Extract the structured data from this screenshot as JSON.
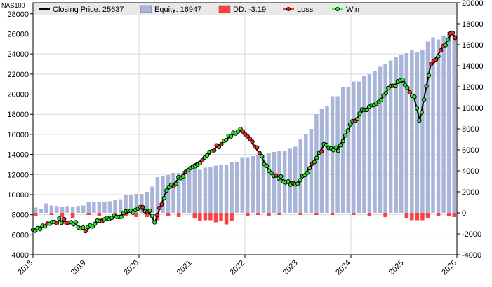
{
  "chart_data": {
    "type": "bar+line",
    "symbol": "NAS100",
    "x_ticks": [
      "2018",
      "2019",
      "2020",
      "2021",
      "2022",
      "2023",
      "2024",
      "2025",
      "2026"
    ],
    "y_left": {
      "ticks": [
        4000,
        6000,
        8000,
        10000,
        12000,
        14000,
        16000,
        18000,
        20000,
        22000,
        24000,
        26000,
        28000
      ],
      "range": [
        4000,
        29100
      ]
    },
    "y_right": {
      "ticks": [
        -4000,
        -2000,
        0,
        2000,
        4000,
        6000,
        8000,
        10000,
        12000,
        14000,
        16000,
        18000,
        20000
      ],
      "range": [
        -4000,
        20000
      ]
    },
    "legend": [
      {
        "key": "closing",
        "label": "Closing Price: 25637",
        "color": "#000000"
      },
      {
        "key": "equity",
        "label": "Equity: 16947",
        "color": "#a8b4d8"
      },
      {
        "key": "dd",
        "label": "DD: -3.19",
        "color": "#ff4040"
      },
      {
        "key": "loss",
        "label": "Loss",
        "color": "#ff0000"
      },
      {
        "key": "win",
        "label": "Win",
        "color": "#00ff00"
      }
    ],
    "price": {
      "x": [
        2018.0,
        2018.25,
        2018.5,
        2018.75,
        2019.0,
        2019.25,
        2019.5,
        2019.75,
        2020.0,
        2020.2,
        2020.3,
        2020.5,
        2020.75,
        2021.0,
        2021.25,
        2021.5,
        2021.75,
        2021.95,
        2022.25,
        2022.5,
        2022.75,
        2023.0,
        2023.25,
        2023.5,
        2023.75,
        2024.0,
        2024.25,
        2024.5,
        2024.75,
        2025.0,
        2025.2,
        2025.3,
        2025.5,
        2025.75,
        2025.9,
        2026.0
      ],
      "values": [
        6500,
        7000,
        7400,
        7200,
        6400,
        7500,
        7700,
        8100,
        8700,
        8200,
        7200,
        10200,
        11600,
        12900,
        13600,
        14900,
        15900,
        16400,
        14300,
        12000,
        11400,
        11000,
        12900,
        15000,
        14500,
        16900,
        18500,
        19000,
        20800,
        21300,
        19500,
        17400,
        22800,
        24800,
        26000,
        25637
      ]
    },
    "equity": {
      "x": [
        2018.05,
        2018.15,
        2018.25,
        2018.35,
        2018.45,
        2018.55,
        2018.65,
        2018.75,
        2018.85,
        2018.95,
        2019.05,
        2019.15,
        2019.25,
        2019.35,
        2019.45,
        2019.55,
        2019.65,
        2019.75,
        2019.85,
        2019.95,
        2020.05,
        2020.15,
        2020.25,
        2020.35,
        2020.45,
        2020.55,
        2020.65,
        2020.75,
        2020.85,
        2020.95,
        2021.05,
        2021.15,
        2021.25,
        2021.35,
        2021.45,
        2021.55,
        2021.65,
        2021.75,
        2021.85,
        2021.95,
        2022.05,
        2022.15,
        2022.25,
        2022.35,
        2022.45,
        2022.55,
        2022.65,
        2022.75,
        2022.85,
        2022.95,
        2023.05,
        2023.15,
        2023.25,
        2023.35,
        2023.45,
        2023.55,
        2023.65,
        2023.75,
        2023.85,
        2023.95,
        2024.05,
        2024.15,
        2024.25,
        2024.35,
        2024.45,
        2024.55,
        2024.65,
        2024.75,
        2024.85,
        2024.95,
        2025.05,
        2025.15,
        2025.25,
        2025.35,
        2025.45,
        2025.55,
        2025.65,
        2025.75,
        2025.85,
        2025.95
      ],
      "values": [
        500,
        400,
        900,
        700,
        650,
        600,
        650,
        600,
        650,
        700,
        1000,
        1000,
        1050,
        1050,
        1100,
        1200,
        1300,
        1700,
        1700,
        1800,
        1800,
        2000,
        2500,
        3400,
        3500,
        3600,
        3800,
        3800,
        4000,
        4200,
        4200,
        4100,
        4300,
        4400,
        4500,
        4600,
        4600,
        4800,
        4800,
        5300,
        5300,
        5400,
        5500,
        5500,
        5700,
        5800,
        5900,
        5900,
        6100,
        6300,
        7000,
        7500,
        8000,
        9400,
        9900,
        10200,
        11100,
        11100,
        12000,
        12000,
        12500,
        12500,
        13000,
        13200,
        13500,
        13900,
        14200,
        14500,
        14800,
        15000,
        15200,
        15500,
        15300,
        15500,
        16300,
        16700,
        16500,
        16800,
        17200,
        16947
      ]
    },
    "drawdown": {
      "x": [
        2018.05,
        2018.35,
        2018.55,
        2018.75,
        2019.05,
        2019.25,
        2019.55,
        2019.75,
        2019.95,
        2020.15,
        2020.35,
        2020.55,
        2020.75,
        2021.05,
        2021.15,
        2021.25,
        2021.35,
        2021.45,
        2021.55,
        2021.65,
        2021.75,
        2022.05,
        2022.25,
        2022.45,
        2022.65,
        2023.05,
        2023.35,
        2023.65,
        2024.05,
        2024.35,
        2024.65,
        2025.05,
        2025.15,
        2025.25,
        2025.35,
        2025.45,
        2025.65,
        2025.85,
        2025.95
      ],
      "values": [
        -300,
        -200,
        -400,
        -500,
        -200,
        -300,
        -200,
        -300,
        -400,
        -400,
        -700,
        -300,
        -400,
        -500,
        -800,
        -700,
        -700,
        -900,
        -800,
        -1100,
        -800,
        -300,
        -200,
        -300,
        -200,
        -200,
        -200,
        -200,
        -200,
        -300,
        -400,
        -500,
        -700,
        -700,
        -700,
        -500,
        -300,
        -300,
        -400
      ]
    }
  }
}
